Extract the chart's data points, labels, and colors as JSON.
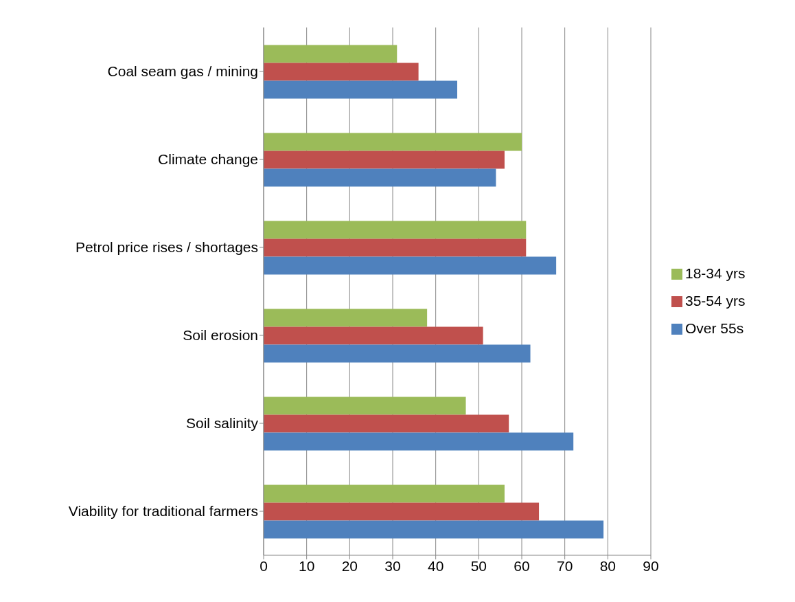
{
  "chart_data": {
    "type": "bar",
    "orientation": "horizontal",
    "categories": [
      "Coal seam gas / mining",
      "Climate change",
      "Petrol price rises / shortages",
      "Soil erosion",
      "Soil salinity",
      "Viability for traditional farmers"
    ],
    "series": [
      {
        "name": "18-34 yrs",
        "color": "#9bbb59",
        "values": [
          31,
          60,
          61,
          38,
          47,
          56
        ]
      },
      {
        "name": "35-54 yrs",
        "color": "#c0504d",
        "values": [
          36,
          56,
          61,
          51,
          57,
          64
        ]
      },
      {
        "name": "Over 55s",
        "color": "#4f81bd",
        "values": [
          45,
          54,
          68,
          62,
          72,
          79
        ]
      }
    ],
    "xlim": [
      0,
      90
    ],
    "xticks": [
      0,
      10,
      20,
      30,
      40,
      50,
      60,
      70,
      80,
      90
    ],
    "grid": "x",
    "legend": "right"
  }
}
